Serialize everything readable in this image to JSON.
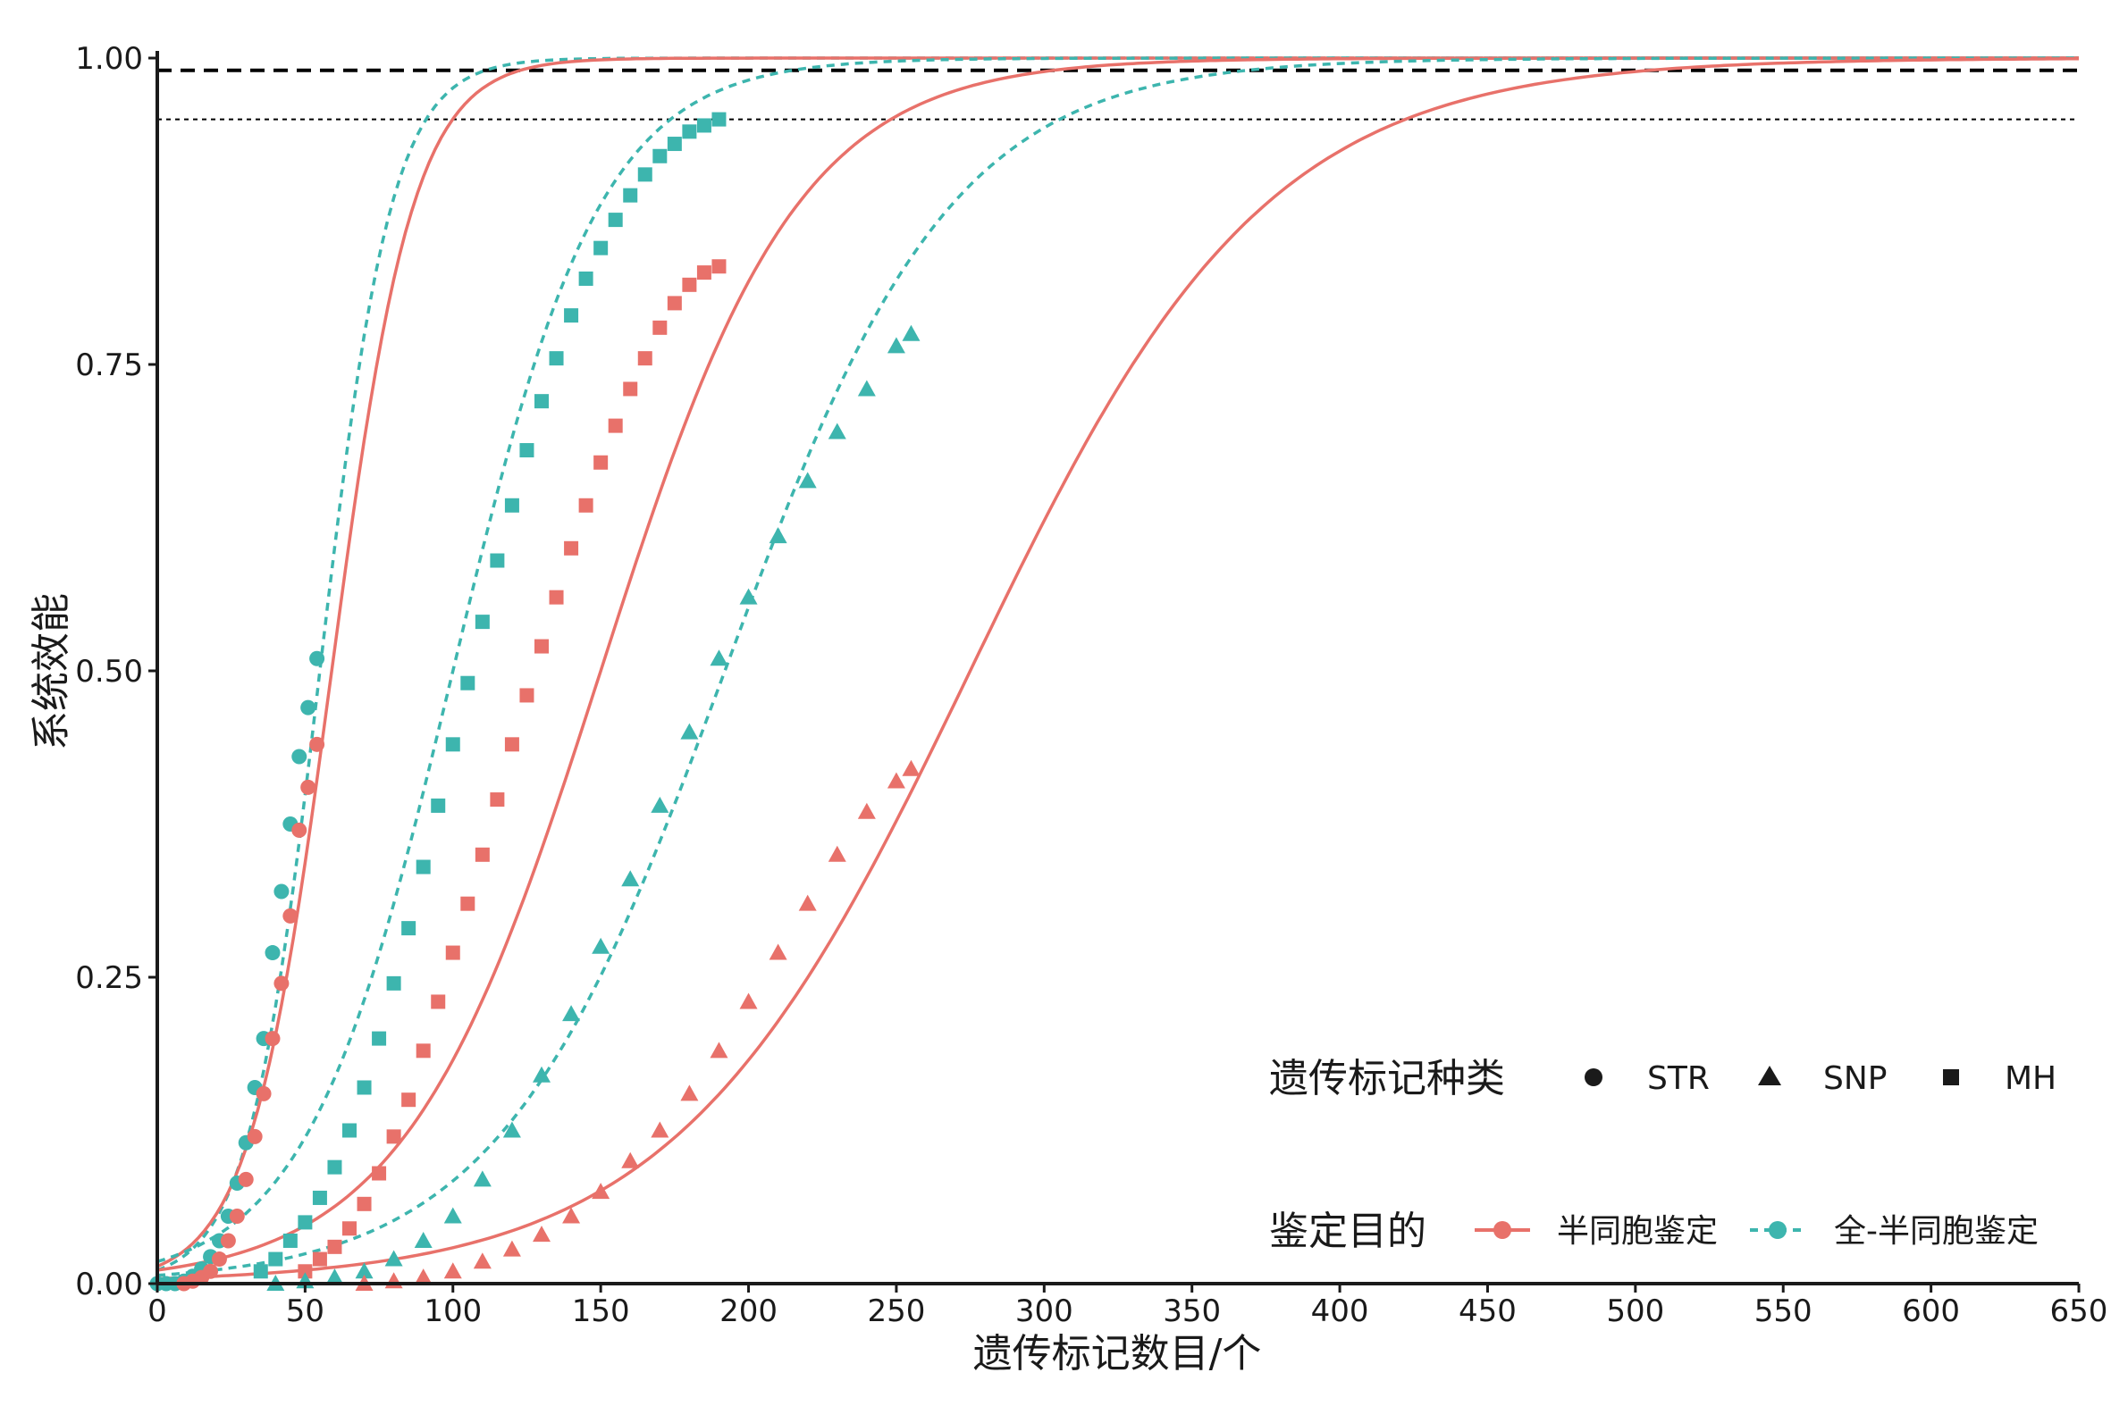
{
  "chart_data": {
    "type": "scatter",
    "title": "",
    "xlabel": "遗传标记数目/个",
    "ylabel": "系统效能",
    "xlim": [
      0,
      650
    ],
    "ylim": [
      0,
      1
    ],
    "x_ticks": [
      "0",
      "50",
      "100",
      "150",
      "200",
      "250",
      "300",
      "350",
      "400",
      "450",
      "500",
      "550",
      "600",
      "650"
    ],
    "y_ticks": [
      "0.00",
      "0.25",
      "0.50",
      "0.75",
      "1.00"
    ],
    "grid": false,
    "reference_lines": [
      {
        "y": 0.99,
        "style": "dashed",
        "color": "#000000"
      },
      {
        "y": 0.95,
        "style": "dotted",
        "color": "#000000"
      }
    ],
    "colors": {
      "half": "#E8716A",
      "full": "#3DB5AE"
    },
    "legend_shape": {
      "title": "遗传标记种类",
      "entries": [
        {
          "label": "STR",
          "shape": "circle"
        },
        {
          "label": "SNP",
          "shape": "triangle"
        },
        {
          "label": "MH",
          "shape": "square"
        }
      ],
      "placement": "bottom-right"
    },
    "legend_color": {
      "title": "鉴定目的",
      "entries": [
        {
          "label": "半同胞鉴定",
          "color": "#E8716A",
          "linestyle": "solid"
        },
        {
          "label": "全-半同胞鉴定",
          "color": "#3DB5AE",
          "linestyle": "dashed"
        }
      ],
      "placement": "bottom-right"
    },
    "series": [
      {
        "purpose": "全-半同胞鉴定",
        "marker_type": "STR",
        "color": "#3DB5AE",
        "shape": "circle",
        "x": [
          0,
          3,
          6,
          9,
          12,
          15,
          18,
          21,
          24,
          27,
          30,
          33,
          36,
          39,
          42,
          45,
          48,
          51,
          54
        ],
        "y": [
          0.0,
          0.0,
          0.0,
          0.002,
          0.006,
          0.012,
          0.022,
          0.035,
          0.055,
          0.082,
          0.115,
          0.16,
          0.2,
          0.27,
          0.32,
          0.375,
          0.43,
          0.47,
          0.51
        ],
        "curve": {
          "mid": 55,
          "k": 0.082
        }
      },
      {
        "purpose": "半同胞鉴定",
        "marker_type": "STR",
        "color": "#E8716A",
        "shape": "circle",
        "x": [
          9,
          12,
          15,
          18,
          21,
          24,
          27,
          30,
          33,
          36,
          39,
          42,
          45,
          48,
          51,
          54
        ],
        "y": [
          0.0,
          0.002,
          0.005,
          0.01,
          0.02,
          0.035,
          0.055,
          0.085,
          0.12,
          0.155,
          0.2,
          0.245,
          0.3,
          0.37,
          0.405,
          0.44
        ],
        "curve": {
          "mid": 59,
          "k": 0.072
        }
      },
      {
        "purpose": "全-半同胞鉴定",
        "marker_type": "MH",
        "color": "#3DB5AE",
        "shape": "square",
        "x": [
          35,
          40,
          45,
          50,
          55,
          60,
          65,
          70,
          75,
          80,
          85,
          90,
          95,
          100,
          105,
          110,
          115,
          120,
          125,
          130,
          135,
          140,
          145,
          150,
          155,
          160,
          165,
          170,
          175,
          180,
          185,
          190
        ],
        "y": [
          0.01,
          0.02,
          0.035,
          0.05,
          0.07,
          0.095,
          0.125,
          0.16,
          0.2,
          0.245,
          0.29,
          0.34,
          0.39,
          0.44,
          0.49,
          0.54,
          0.59,
          0.635,
          0.68,
          0.72,
          0.755,
          0.79,
          0.82,
          0.845,
          0.868,
          0.888,
          0.905,
          0.92,
          0.93,
          0.94,
          0.945,
          0.95
        ],
        "curve": {
          "mid": 100,
          "k": 0.04
        }
      },
      {
        "purpose": "半同胞鉴定",
        "marker_type": "MH",
        "color": "#E8716A",
        "shape": "square",
        "x": [
          50,
          55,
          60,
          65,
          70,
          75,
          80,
          85,
          90,
          95,
          100,
          105,
          110,
          115,
          120,
          125,
          130,
          135,
          140,
          145,
          150,
          155,
          160,
          165,
          170,
          175,
          180,
          185,
          190
        ],
        "y": [
          0.01,
          0.02,
          0.03,
          0.045,
          0.065,
          0.09,
          0.12,
          0.15,
          0.19,
          0.23,
          0.27,
          0.31,
          0.35,
          0.395,
          0.44,
          0.48,
          0.52,
          0.56,
          0.6,
          0.635,
          0.67,
          0.7,
          0.73,
          0.755,
          0.78,
          0.8,
          0.815,
          0.825,
          0.83
        ],
        "curve": {
          "mid": 150,
          "k": 0.03
        }
      },
      {
        "purpose": "全-半同胞鉴定",
        "marker_type": "SNP",
        "color": "#3DB5AE",
        "shape": "triangle",
        "x": [
          40,
          50,
          60,
          70,
          80,
          90,
          100,
          110,
          120,
          130,
          140,
          150,
          160,
          170,
          180,
          190,
          200,
          210,
          220,
          230,
          240,
          250,
          255
        ],
        "y": [
          0.0,
          0.002,
          0.005,
          0.01,
          0.02,
          0.035,
          0.055,
          0.085,
          0.125,
          0.17,
          0.22,
          0.275,
          0.33,
          0.39,
          0.45,
          0.51,
          0.56,
          0.61,
          0.655,
          0.695,
          0.73,
          0.765,
          0.775
        ],
        "curve": {
          "mid": 192,
          "k": 0.026
        }
      },
      {
        "purpose": "半同胞鉴定",
        "marker_type": "SNP",
        "color": "#E8716A",
        "shape": "triangle",
        "x": [
          70,
          80,
          90,
          100,
          110,
          120,
          130,
          140,
          150,
          160,
          170,
          180,
          190,
          200,
          210,
          220,
          230,
          240,
          250,
          255
        ],
        "y": [
          0.0,
          0.002,
          0.005,
          0.01,
          0.018,
          0.028,
          0.04,
          0.055,
          0.075,
          0.1,
          0.125,
          0.155,
          0.19,
          0.23,
          0.27,
          0.31,
          0.35,
          0.385,
          0.41,
          0.42
        ],
        "curve": {
          "mid": 275,
          "k": 0.02
        }
      }
    ]
  }
}
